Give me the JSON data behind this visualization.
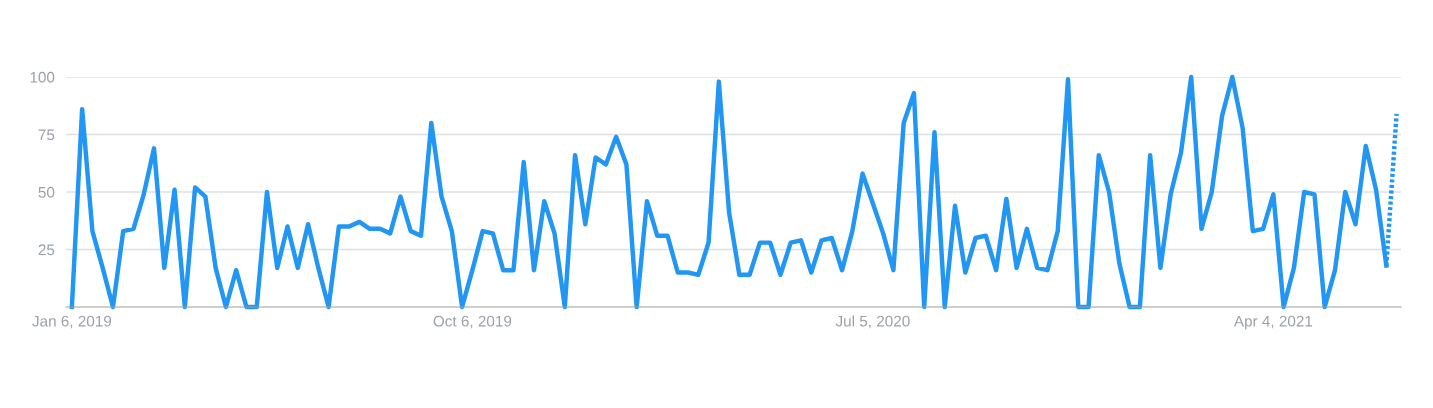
{
  "chart_data": {
    "type": "line",
    "x": [
      "2019-01-06",
      "2019-01-13",
      "2019-01-20",
      "2019-01-27",
      "2019-02-03",
      "2019-02-10",
      "2019-02-17",
      "2019-02-24",
      "2019-03-03",
      "2019-03-10",
      "2019-03-17",
      "2019-03-24",
      "2019-03-31",
      "2019-04-07",
      "2019-04-14",
      "2019-04-21",
      "2019-04-28",
      "2019-05-05",
      "2019-05-12",
      "2019-05-19",
      "2019-05-26",
      "2019-06-02",
      "2019-06-09",
      "2019-06-16",
      "2019-06-23",
      "2019-06-30",
      "2019-07-07",
      "2019-07-14",
      "2019-07-21",
      "2019-07-28",
      "2019-08-04",
      "2019-08-11",
      "2019-08-18",
      "2019-08-25",
      "2019-09-01",
      "2019-09-08",
      "2019-09-15",
      "2019-09-22",
      "2019-09-29",
      "2019-10-06",
      "2019-10-13",
      "2019-10-20",
      "2019-10-27",
      "2019-11-03",
      "2019-11-10",
      "2019-11-17",
      "2019-11-24",
      "2019-12-01",
      "2019-12-08",
      "2019-12-15",
      "2019-12-22",
      "2019-12-29",
      "2020-01-05",
      "2020-01-12",
      "2020-01-19",
      "2020-01-26",
      "2020-02-02",
      "2020-02-09",
      "2020-02-16",
      "2020-02-23",
      "2020-03-01",
      "2020-03-08",
      "2020-03-15",
      "2020-03-22",
      "2020-03-29",
      "2020-04-05",
      "2020-04-12",
      "2020-04-19",
      "2020-04-26",
      "2020-05-03",
      "2020-05-10",
      "2020-05-17",
      "2020-05-24",
      "2020-05-31",
      "2020-06-07",
      "2020-06-14",
      "2020-06-21",
      "2020-06-28",
      "2020-07-05",
      "2020-07-12",
      "2020-07-19",
      "2020-07-26",
      "2020-08-02",
      "2020-08-09",
      "2020-08-16",
      "2020-08-23",
      "2020-08-30",
      "2020-09-06",
      "2020-09-13",
      "2020-09-20",
      "2020-09-27",
      "2020-10-04",
      "2020-10-11",
      "2020-10-18",
      "2020-10-25",
      "2020-11-01",
      "2020-11-08",
      "2020-11-15",
      "2020-11-22",
      "2020-11-29",
      "2020-12-06",
      "2020-12-13",
      "2020-12-20",
      "2020-12-27",
      "2021-01-03",
      "2021-01-10",
      "2021-01-17",
      "2021-01-24",
      "2021-01-31",
      "2021-02-07",
      "2021-02-14",
      "2021-02-21",
      "2021-02-28",
      "2021-03-07",
      "2021-03-14",
      "2021-03-21",
      "2021-03-28",
      "2021-04-04",
      "2021-04-11",
      "2021-04-18",
      "2021-04-25",
      "2021-05-02",
      "2021-05-09",
      "2021-05-16",
      "2021-05-23",
      "2021-05-30",
      "2021-06-06",
      "2021-06-13",
      "2021-06-20"
    ],
    "series": [
      {
        "color": "#2196f3",
        "line_style": "solid",
        "values": [
          0,
          86,
          33,
          17,
          0,
          33,
          34,
          49,
          69,
          17,
          51,
          0,
          52,
          48,
          17,
          0,
          16,
          0,
          0,
          50,
          17,
          35,
          17,
          36,
          17,
          0,
          35,
          35,
          37,
          34,
          34,
          32,
          48,
          33,
          31,
          80,
          48,
          33,
          0,
          16,
          33,
          32,
          16,
          16,
          63,
          16,
          46,
          32,
          0,
          66,
          36,
          65,
          62,
          74,
          62,
          0,
          46,
          31,
          31,
          15,
          15,
          14,
          28,
          98,
          41,
          14,
          14,
          28,
          28,
          14,
          28,
          29,
          15,
          29,
          30,
          16,
          33,
          58,
          45,
          32,
          16,
          80,
          93,
          0,
          76,
          0,
          44,
          15,
          30,
          31,
          16,
          47,
          17,
          34,
          17,
          16,
          33,
          99,
          0,
          0,
          66,
          50,
          19,
          0,
          0,
          66,
          17,
          49,
          67,
          100,
          34,
          50,
          83,
          100,
          78,
          33,
          34,
          49,
          0,
          17,
          50,
          49,
          0,
          16,
          50,
          36,
          70,
          51,
          18
        ]
      },
      {
        "color": "#2196f3",
        "line_style": "dotted",
        "x": [
          "2021-06-20",
          "2021-06-27"
        ],
        "values": [
          18,
          84
        ]
      }
    ],
    "xlim": [
      "2019-01-02",
      "2021-06-30"
    ],
    "xticks": [
      {
        "value": "2019-01-06",
        "label": "Jan 6, 2019"
      },
      {
        "value": "2019-10-06",
        "label": "Oct 6, 2019"
      },
      {
        "value": "2020-07-05",
        "label": "Jul 5, 2020"
      },
      {
        "value": "2021-04-04",
        "label": "Apr 4, 2021"
      }
    ],
    "ylim": [
      0,
      100
    ],
    "yticks": [
      25,
      50,
      75,
      100
    ],
    "grid": "y",
    "marker": "none"
  }
}
